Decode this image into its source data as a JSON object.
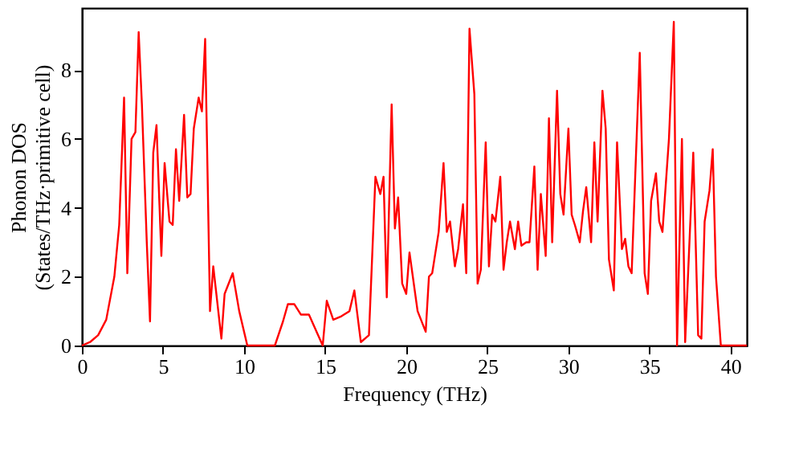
{
  "chart_data": {
    "type": "line",
    "xlabel": "Frequency (THz)",
    "ylabel": "Phonon DOS\n(States/THz·primitive cell)",
    "xlim": [
      0,
      41
    ],
    "ylim": [
      0,
      9.8
    ],
    "xticks": [
      0,
      5,
      10,
      15,
      20,
      25,
      30,
      35,
      40
    ],
    "yticks": [
      0,
      2,
      4,
      6,
      8
    ],
    "grid": false,
    "legend": false,
    "marker": "none",
    "line_style": "solid",
    "series": [
      {
        "color": "#ff0000",
        "x": [
          0,
          0.5,
          1.0,
          1.5,
          2.0,
          2.3,
          2.6,
          2.8,
          3.06,
          3.3,
          3.5,
          3.7,
          4.0,
          4.2,
          4.4,
          4.6,
          4.9,
          5.1,
          5.4,
          5.6,
          5.8,
          6.0,
          6.3,
          6.5,
          6.7,
          6.9,
          7.2,
          7.4,
          7.6,
          7.9,
          8.1,
          8.6,
          8.8,
          9.3,
          9.7,
          10.2,
          11.9,
          12.4,
          12.7,
          13.1,
          13.5,
          14.0,
          14.85,
          15.1,
          15.5,
          16.0,
          16.5,
          16.8,
          17.2,
          17.7,
          18.1,
          18.4,
          18.6,
          18.8,
          19.1,
          19.3,
          19.5,
          19.75,
          20.0,
          20.2,
          20.7,
          21.2,
          21.4,
          21.6,
          22.0,
          22.3,
          22.5,
          22.7,
          23.0,
          23.2,
          23.5,
          23.7,
          23.9,
          24.2,
          24.4,
          24.6,
          24.9,
          25.1,
          25.3,
          25.5,
          25.8,
          26.0,
          26.2,
          26.4,
          26.7,
          26.9,
          27.1,
          27.4,
          27.6,
          27.9,
          28.1,
          28.3,
          28.6,
          28.8,
          29.0,
          29.3,
          29.5,
          29.7,
          30.0,
          30.2,
          30.4,
          30.7,
          30.9,
          31.1,
          31.4,
          31.6,
          31.8,
          32.1,
          32.3,
          32.5,
          32.8,
          33.0,
          33.3,
          33.5,
          33.7,
          33.9,
          34.4,
          34.7,
          34.9,
          35.1,
          35.4,
          35.6,
          35.8,
          36.2,
          36.5,
          36.7,
          37.0,
          37.2,
          37.7,
          38.0,
          38.2,
          38.4,
          38.7,
          38.9,
          39.1,
          39.4,
          41.0
        ],
        "values": [
          0,
          0.1,
          0.3,
          0.75,
          2.0,
          3.5,
          7.2,
          2.1,
          6.0,
          6.2,
          9.1,
          7.0,
          3.0,
          0.7,
          5.6,
          6.4,
          2.6,
          5.3,
          3.6,
          3.5,
          5.7,
          4.2,
          6.7,
          4.3,
          4.4,
          6.3,
          7.2,
          6.8,
          8.9,
          1.0,
          2.3,
          0.2,
          1.5,
          2.1,
          1.0,
          0,
          0,
          0.7,
          1.2,
          1.2,
          0.9,
          0.9,
          0,
          1.3,
          0.75,
          0.85,
          1.0,
          1.6,
          0.1,
          0.3,
          4.9,
          4.4,
          4.9,
          1.4,
          7.0,
          3.4,
          4.3,
          1.8,
          1.5,
          2.7,
          1.0,
          0.4,
          2.0,
          2.1,
          3.3,
          5.3,
          3.3,
          3.6,
          2.3,
          2.8,
          4.1,
          2.1,
          9.2,
          7.3,
          1.8,
          2.2,
          5.9,
          2.3,
          3.8,
          3.6,
          4.9,
          2.2,
          3.0,
          3.6,
          2.8,
          3.6,
          2.9,
          3.0,
          3.0,
          5.2,
          2.2,
          4.4,
          2.6,
          6.6,
          3.0,
          7.4,
          4.4,
          3.8,
          6.3,
          3.8,
          3.5,
          3.0,
          3.9,
          4.6,
          3.0,
          5.9,
          3.6,
          7.4,
          6.3,
          2.5,
          1.6,
          5.9,
          2.8,
          3.1,
          2.3,
          2.1,
          8.5,
          2.1,
          1.5,
          4.2,
          5.0,
          3.6,
          3.3,
          6.0,
          9.4,
          0,
          6.0,
          0.1,
          5.6,
          0.3,
          0.2,
          3.6,
          4.5,
          5.7,
          2.0,
          0,
          0
        ]
      }
    ]
  }
}
